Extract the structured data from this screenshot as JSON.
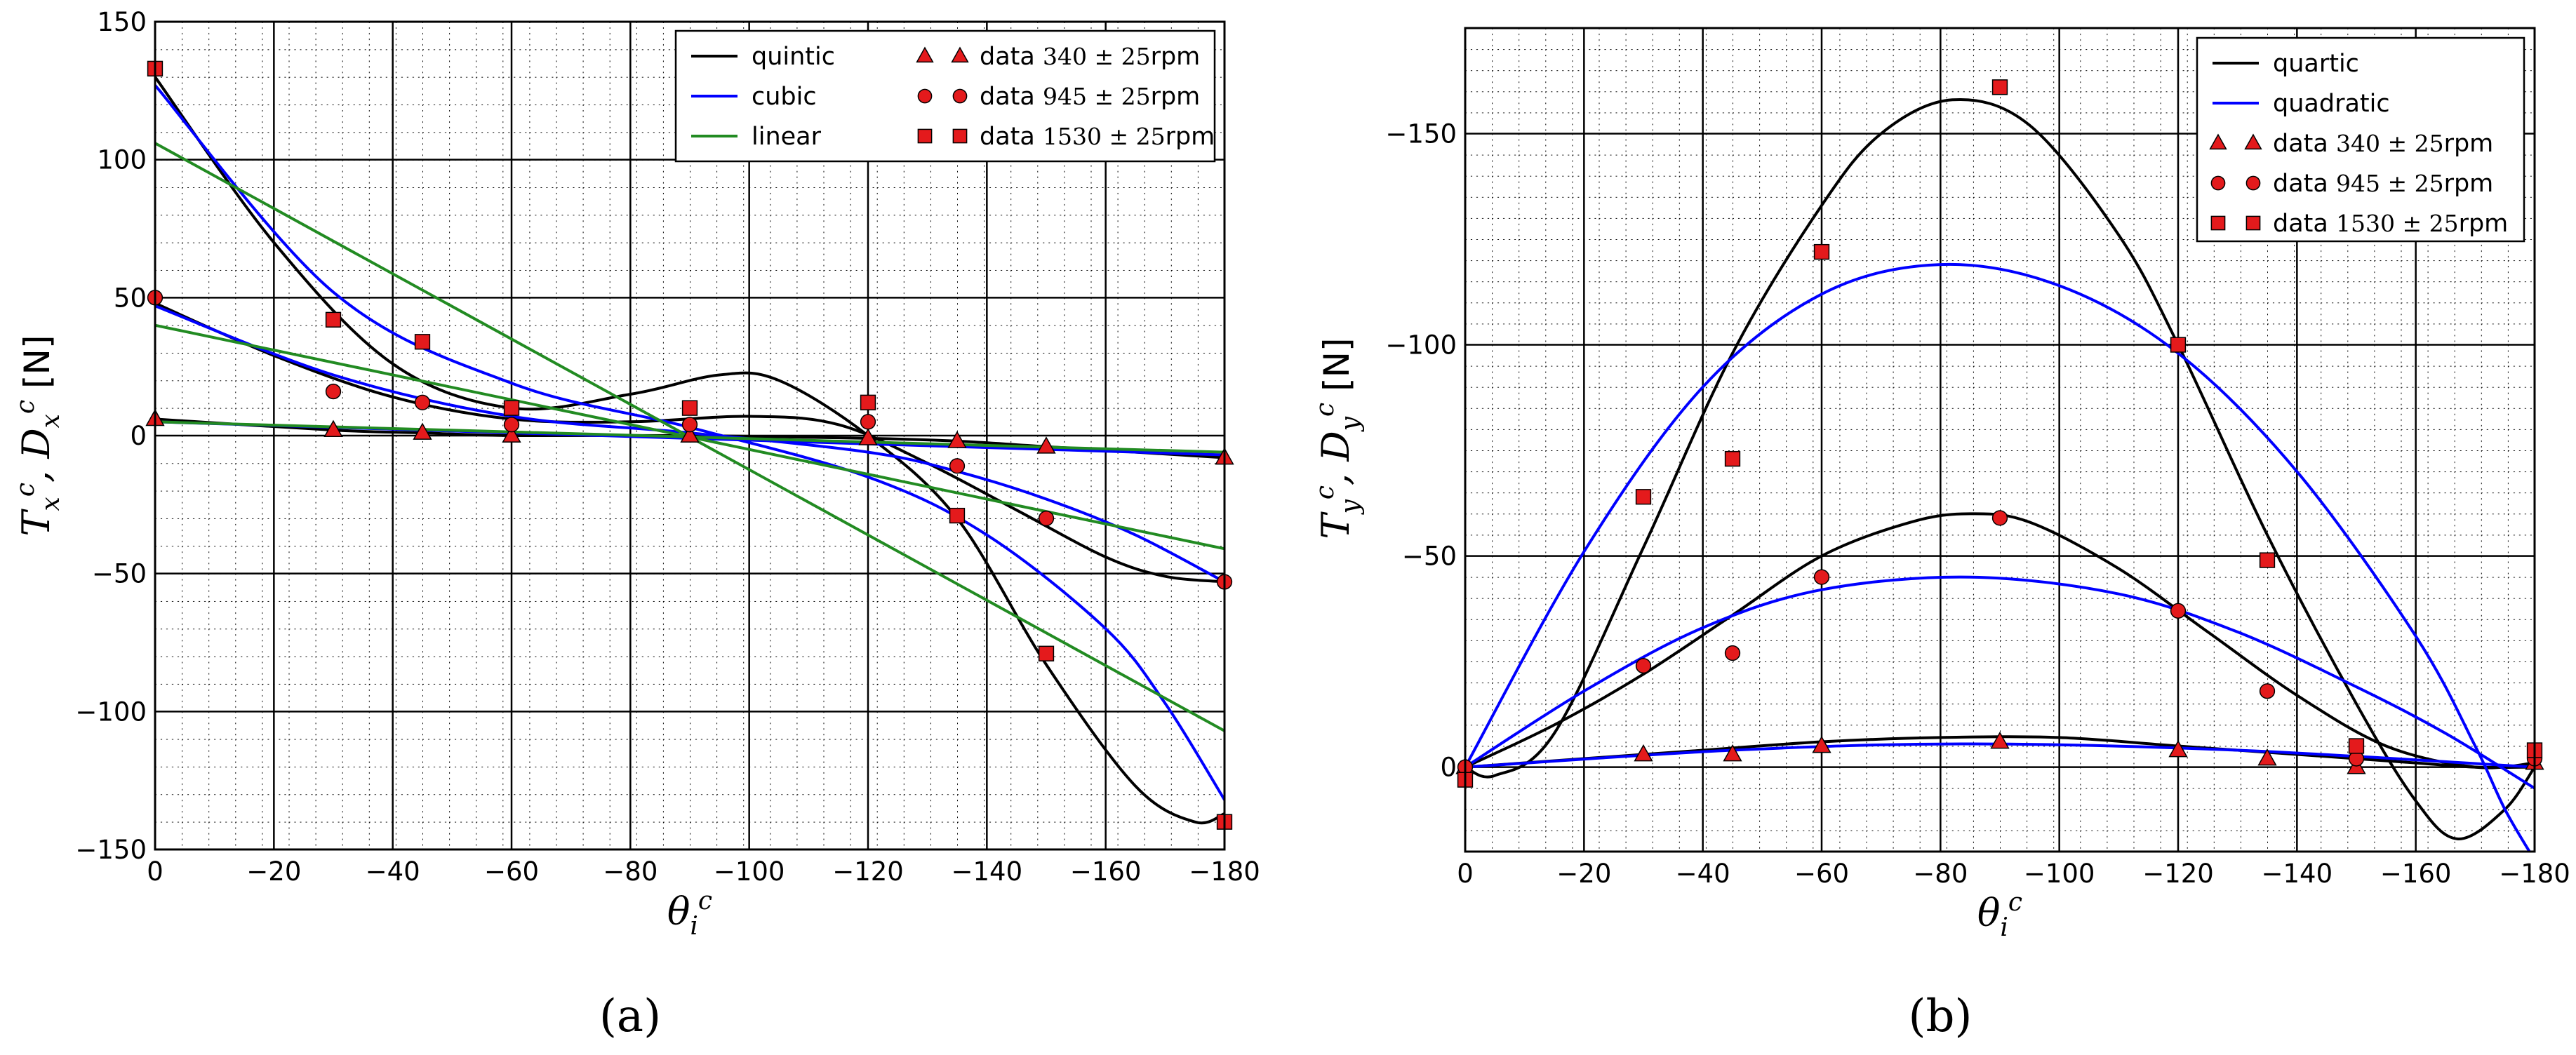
{
  "chart_data": [
    {
      "panel_label": "(a)",
      "type": "line",
      "xlabel": "θ_i^c",
      "ylabel": "T_x^c, D_x^c [N]",
      "xlim": [
        0,
        -180
      ],
      "ylim": [
        -150,
        150
      ],
      "x_ticks": [
        0,
        -20,
        -40,
        -60,
        -80,
        -100,
        -120,
        -140,
        -160,
        -180
      ],
      "y_ticks": [
        -150,
        -100,
        -50,
        0,
        50,
        100,
        150
      ],
      "grid": true,
      "minor_grid": true,
      "legend_position": "top-right",
      "legend": [
        {
          "label": "quintic",
          "kind": "line",
          "color": "#000000"
        },
        {
          "label": "cubic",
          "kind": "line",
          "color": "#0000ff"
        },
        {
          "label": "linear",
          "kind": "line",
          "color": "#228b22"
        },
        {
          "label": "data 340 ± 25rpm",
          "prefix": "data ",
          "math": "340 ± 25",
          "suffix": "rpm",
          "kind": "marker",
          "marker": "triangle",
          "color": "#e41a1c"
        },
        {
          "label": "data 945 ± 25rpm",
          "prefix": "data ",
          "math": "945 ± 25",
          "suffix": "rpm",
          "kind": "marker",
          "marker": "circle",
          "color": "#e41a1c"
        },
        {
          "label": "data 1530 ± 25rpm",
          "prefix": "data ",
          "math": "1530 ± 25",
          "suffix": "rpm",
          "kind": "marker",
          "marker": "square",
          "color": "#e41a1c"
        }
      ],
      "series": [
        {
          "name": "data 340 ± 25rpm",
          "kind": "scatter",
          "marker": "triangle",
          "color": "#e41a1c",
          "points": [
            [
              0,
              6
            ],
            [
              -30,
              2
            ],
            [
              -45,
              1
            ],
            [
              -60,
              0
            ],
            [
              -90,
              0
            ],
            [
              -120,
              -1
            ],
            [
              -135,
              -2
            ],
            [
              -150,
              -4
            ],
            [
              -180,
              -8
            ]
          ]
        },
        {
          "name": "data 945 ± 25rpm",
          "kind": "scatter",
          "marker": "circle",
          "color": "#e41a1c",
          "points": [
            [
              0,
              50
            ],
            [
              -30,
              16
            ],
            [
              -45,
              12
            ],
            [
              -60,
              4
            ],
            [
              -90,
              4
            ],
            [
              -120,
              5
            ],
            [
              -135,
              -11
            ],
            [
              -150,
              -30
            ],
            [
              -180,
              -53
            ]
          ]
        },
        {
          "name": "data 1530 ± 25rpm",
          "kind": "scatter",
          "marker": "square",
          "color": "#e41a1c",
          "points": [
            [
              0,
              133
            ],
            [
              -30,
              42
            ],
            [
              -45,
              34
            ],
            [
              -60,
              10
            ],
            [
              -90,
              10
            ],
            [
              -120,
              12
            ],
            [
              -135,
              -29
            ],
            [
              -150,
              -79
            ],
            [
              -180,
              -140
            ]
          ]
        },
        {
          "name": "quintic",
          "kind": "fit",
          "color": "#000000",
          "group": 340,
          "points": [
            [
              0,
              6
            ],
            [
              -30,
              2
            ],
            [
              -45,
              1
            ],
            [
              -60,
              0
            ],
            [
              -90,
              0
            ],
            [
              -120,
              -1
            ],
            [
              -135,
              -2
            ],
            [
              -150,
              -4
            ],
            [
              -180,
              -8
            ]
          ]
        },
        {
          "name": "quintic",
          "kind": "fit",
          "color": "#000000",
          "group": 945,
          "points": [
            [
              0,
              48
            ],
            [
              -20,
              29
            ],
            [
              -40,
              14
            ],
            [
              -60,
              6
            ],
            [
              -80,
              5
            ],
            [
              -100,
              7
            ],
            [
              -115,
              4
            ],
            [
              -130,
              -10
            ],
            [
              -145,
              -27
            ],
            [
              -160,
              -44
            ],
            [
              -170,
              -51
            ],
            [
              -180,
              -53
            ]
          ]
        },
        {
          "name": "quintic",
          "kind": "fit",
          "color": "#000000",
          "group": 1530,
          "points": [
            [
              0,
              130
            ],
            [
              -20,
              70
            ],
            [
              -40,
              26
            ],
            [
              -60,
              10
            ],
            [
              -80,
              15
            ],
            [
              -95,
              22
            ],
            [
              -105,
              20
            ],
            [
              -120,
              0
            ],
            [
              -135,
              -30
            ],
            [
              -150,
              -83
            ],
            [
              -165,
              -127
            ],
            [
              -175,
              -140
            ],
            [
              -180,
              -137
            ]
          ]
        },
        {
          "name": "cubic",
          "kind": "fit",
          "color": "#0000ff",
          "group": 340,
          "points": [
            [
              0,
              5
            ],
            [
              -180,
              -7
            ]
          ]
        },
        {
          "name": "cubic",
          "kind": "fit",
          "color": "#0000ff",
          "group": 945,
          "points": [
            [
              0,
              47
            ],
            [
              -30,
              22
            ],
            [
              -60,
              7
            ],
            [
              -90,
              1
            ],
            [
              -120,
              -6
            ],
            [
              -135,
              -13
            ],
            [
              -150,
              -23
            ],
            [
              -165,
              -36
            ],
            [
              -180,
              -53
            ]
          ]
        },
        {
          "name": "cubic",
          "kind": "fit",
          "color": "#0000ff",
          "group": 1530,
          "points": [
            [
              0,
              127
            ],
            [
              -30,
              52
            ],
            [
              -60,
              19
            ],
            [
              -90,
              3
            ],
            [
              -120,
              -15
            ],
            [
              -140,
              -36
            ],
            [
              -160,
              -70
            ],
            [
              -170,
              -97
            ],
            [
              -180,
              -132
            ]
          ]
        },
        {
          "name": "linear",
          "kind": "fit",
          "color": "#228b22",
          "group": 340,
          "points": [
            [
              0,
              5
            ],
            [
              -180,
              -6
            ]
          ]
        },
        {
          "name": "linear",
          "kind": "fit",
          "color": "#228b22",
          "group": 945,
          "points": [
            [
              0,
              40
            ],
            [
              -180,
              -41
            ]
          ]
        },
        {
          "name": "linear",
          "kind": "fit",
          "color": "#228b22",
          "group": 1530,
          "points": [
            [
              0,
              106
            ],
            [
              -180,
              -107
            ]
          ]
        }
      ]
    },
    {
      "panel_label": "(b)",
      "type": "line",
      "xlabel": "θ_i^c",
      "ylabel": "T_y^c, D_y^c [N]",
      "xlim": [
        0,
        -180
      ],
      "ylim": [
        20,
        -175
      ],
      "x_ticks": [
        0,
        -20,
        -40,
        -60,
        -80,
        -100,
        -120,
        -140,
        -160,
        -180
      ],
      "y_ticks": [
        -150,
        -100,
        -50,
        0
      ],
      "grid": true,
      "minor_grid": true,
      "legend_position": "top-right",
      "legend": [
        {
          "label": "quartic",
          "kind": "line",
          "color": "#000000"
        },
        {
          "label": "quadratic",
          "kind": "line",
          "color": "#0000ff"
        },
        {
          "label": "data 340 ± 25rpm",
          "prefix": "data ",
          "math": "340 ± 25",
          "suffix": "rpm",
          "kind": "marker",
          "marker": "triangle",
          "color": "#e41a1c"
        },
        {
          "label": "data 945 ± 25rpm",
          "prefix": "data ",
          "math": "945 ± 25",
          "suffix": "rpm",
          "kind": "marker",
          "marker": "circle",
          "color": "#e41a1c"
        },
        {
          "label": "data 1530 ± 25rpm",
          "prefix": "data ",
          "math": "1530 ± 25",
          "suffix": "rpm",
          "kind": "marker",
          "marker": "square",
          "color": "#e41a1c"
        }
      ],
      "series": [
        {
          "name": "data 340 ± 25rpm",
          "kind": "scatter",
          "marker": "triangle",
          "color": "#e41a1c",
          "points": [
            [
              0,
              0
            ],
            [
              -30,
              -3
            ],
            [
              -45,
              -3
            ],
            [
              -60,
              -5
            ],
            [
              -90,
              -6
            ],
            [
              -120,
              -4
            ],
            [
              -135,
              -2
            ],
            [
              -150,
              0
            ],
            [
              -180,
              -1
            ]
          ]
        },
        {
          "name": "data 945 ± 25rpm",
          "kind": "scatter",
          "marker": "circle",
          "color": "#e41a1c",
          "points": [
            [
              0,
              0
            ],
            [
              -30,
              -24
            ],
            [
              -45,
              -27
            ],
            [
              -60,
              -45
            ],
            [
              -90,
              -59
            ],
            [
              -120,
              -37
            ],
            [
              -135,
              -18
            ],
            [
              -150,
              -2
            ],
            [
              -180,
              -2
            ]
          ]
        },
        {
          "name": "data 1530 ± 25rpm",
          "kind": "scatter",
          "marker": "square",
          "color": "#e41a1c",
          "points": [
            [
              0,
              3
            ],
            [
              -30,
              -64
            ],
            [
              -45,
              -73
            ],
            [
              -60,
              -122
            ],
            [
              -90,
              -161
            ],
            [
              -120,
              -100
            ],
            [
              -135,
              -49
            ],
            [
              -150,
              -5
            ],
            [
              -180,
              -4
            ]
          ]
        },
        {
          "name": "quartic",
          "kind": "fit",
          "color": "#000000",
          "group": 340,
          "points": [
            [
              0,
              0
            ],
            [
              -20,
              -2
            ],
            [
              -40,
              -4
            ],
            [
              -60,
              -6
            ],
            [
              -80,
              -7
            ],
            [
              -100,
              -7
            ],
            [
              -120,
              -5
            ],
            [
              -140,
              -3
            ],
            [
              -160,
              -1
            ],
            [
              -170,
              0
            ],
            [
              -180,
              0
            ]
          ]
        },
        {
          "name": "quartic",
          "kind": "fit",
          "color": "#000000",
          "group": 945,
          "points": [
            [
              0,
              0
            ],
            [
              -15,
              -10
            ],
            [
              -30,
              -22
            ],
            [
              -45,
              -36
            ],
            [
              -60,
              -50
            ],
            [
              -75,
              -58
            ],
            [
              -85,
              -60
            ],
            [
              -95,
              -58
            ],
            [
              -110,
              -47
            ],
            [
              -125,
              -32
            ],
            [
              -140,
              -17
            ],
            [
              -155,
              -5
            ],
            [
              -170,
              0
            ],
            [
              -180,
              -1
            ]
          ]
        },
        {
          "name": "quartic",
          "kind": "fit",
          "color": "#000000",
          "group": 1530,
          "points": [
            [
              0,
              0
            ],
            [
              -5,
              2
            ],
            [
              -15,
              -8
            ],
            [
              -30,
              -52
            ],
            [
              -45,
              -98
            ],
            [
              -60,
              -133
            ],
            [
              -70,
              -150
            ],
            [
              -82,
              -158
            ],
            [
              -95,
              -152
            ],
            [
              -110,
              -126
            ],
            [
              -120,
              -100
            ],
            [
              -135,
              -55
            ],
            [
              -150,
              -15
            ],
            [
              -160,
              8
            ],
            [
              -167,
              17
            ],
            [
              -175,
              10
            ],
            [
              -180,
              0
            ]
          ]
        },
        {
          "name": "quadratic",
          "kind": "fit",
          "color": "#0000ff",
          "group": 340,
          "points": [
            [
              0,
              0
            ],
            [
              -45,
              -4
            ],
            [
              -85,
              -5.5
            ],
            [
              -130,
              -4
            ],
            [
              -180,
              0
            ]
          ]
        },
        {
          "name": "quadratic",
          "kind": "fit",
          "color": "#0000ff",
          "group": 945,
          "points": [
            [
              0,
              0
            ],
            [
              -20,
              -18
            ],
            [
              -40,
              -33
            ],
            [
              -60,
              -42
            ],
            [
              -85,
              -45
            ],
            [
              -110,
              -41
            ],
            [
              -130,
              -32
            ],
            [
              -150,
              -19
            ],
            [
              -165,
              -8
            ],
            [
              -180,
              5
            ]
          ]
        },
        {
          "name": "quadratic",
          "kind": "fit",
          "color": "#0000ff",
          "group": 1530,
          "points": [
            [
              0,
              0
            ],
            [
              -20,
              -51
            ],
            [
              -40,
              -90
            ],
            [
              -60,
              -112
            ],
            [
              -80,
              -119
            ],
            [
              -100,
              -114
            ],
            [
              -120,
              -98
            ],
            [
              -140,
              -70
            ],
            [
              -160,
              -31
            ],
            [
              -170,
              -5
            ],
            [
              -175,
              10
            ],
            [
              -180,
              22
            ]
          ]
        }
      ]
    }
  ]
}
